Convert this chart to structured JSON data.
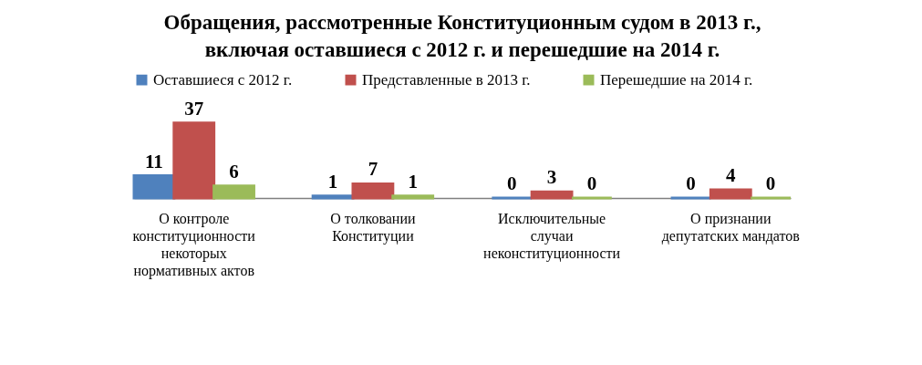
{
  "chart_data": {
    "type": "bar",
    "title": "Обращения, рассмотренные Конституционным судом в 2013 г., включая оставшиеся с 2012 г. и перешедшие на 2014 г.",
    "categories": [
      "О контроле конституционности некоторых нормативных актов",
      "О толковании Конституции",
      "Исключительные случаи неконституционности",
      "О признании депутатских мандатов"
    ],
    "series": [
      {
        "name": "Оставшиеся с 2012 г.",
        "color": "#4f81bd",
        "values": [
          11,
          1,
          0,
          0
        ]
      },
      {
        "name": "Представленные в 2013 г.",
        "color": "#c0504d",
        "values": [
          37,
          7,
          3,
          4
        ]
      },
      {
        "name": "Перешедшие на 2014 г.",
        "color": "#9bbb59",
        "values": [
          6,
          1,
          0,
          0
        ]
      }
    ],
    "data_labels": true,
    "legend": "top",
    "tick_labels": "x"
  }
}
